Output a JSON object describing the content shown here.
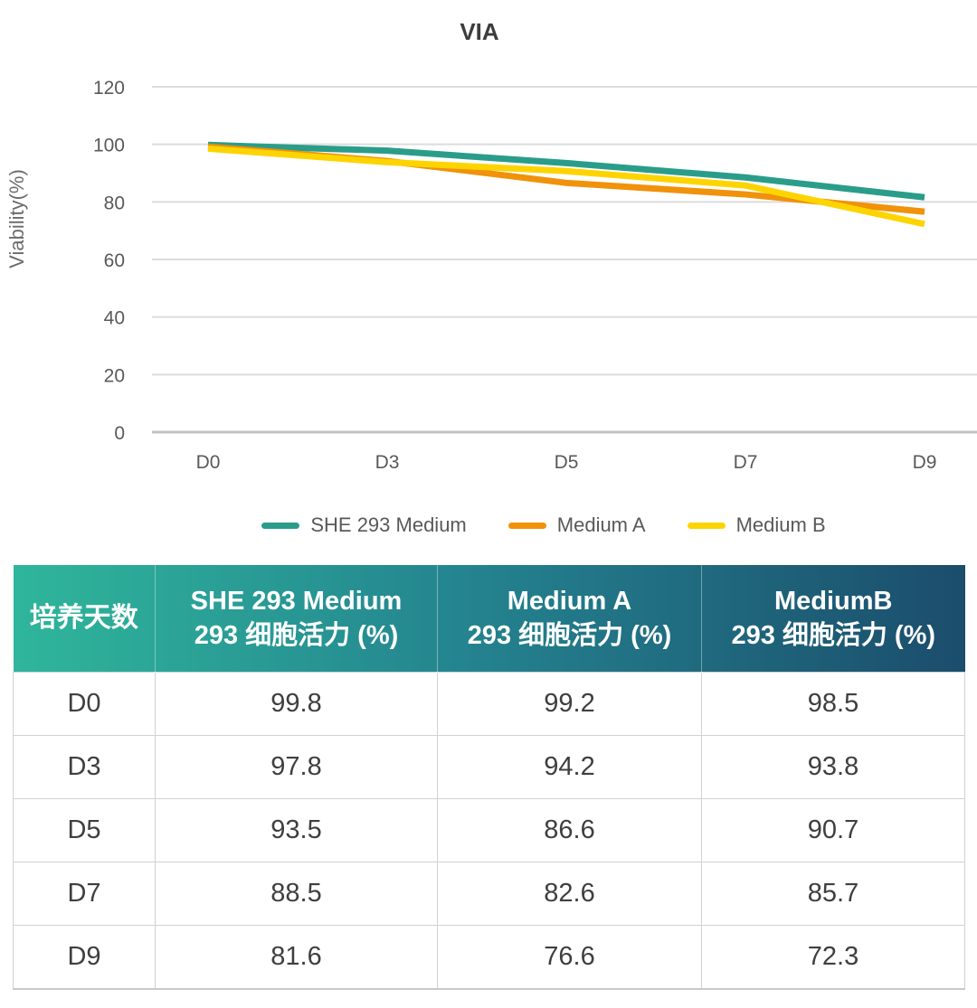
{
  "chart_data": {
    "type": "line",
    "title": "VIA",
    "xlabel": "",
    "ylabel": "Viability(%)",
    "categories": [
      "D0",
      "D3",
      "D5",
      "D7",
      "D9"
    ],
    "series": [
      {
        "name": "SHE 293 Medium",
        "color": "#2a9d8a",
        "values": [
          99.8,
          97.8,
          93.5,
          88.5,
          81.6
        ]
      },
      {
        "name": "Medium A",
        "color": "#f0920a",
        "values": [
          99.2,
          94.2,
          86.6,
          82.6,
          76.6
        ]
      },
      {
        "name": "Medium B",
        "color": "#fdd400",
        "values": [
          98.5,
          93.8,
          90.7,
          85.7,
          72.3
        ]
      }
    ],
    "ylim": [
      0,
      120
    ],
    "ytick_step": 20,
    "grid": true,
    "legend_position": "bottom"
  },
  "table": {
    "header": {
      "day_column": "培养天数",
      "data_columns": [
        {
          "line1": "SHE 293 Medium",
          "line2": "293 细胞活力 (%)"
        },
        {
          "line1": "Medium A",
          "line2": "293 细胞活力 (%)"
        },
        {
          "line1": "MediumB",
          "line2": "293 细胞活力 (%)"
        }
      ]
    },
    "rows": [
      {
        "day": "D0",
        "values": [
          "99.8",
          "99.2",
          "98.5"
        ]
      },
      {
        "day": "D3",
        "values": [
          "97.8",
          "94.2",
          "93.8"
        ]
      },
      {
        "day": "D5",
        "values": [
          "93.5",
          "86.6",
          "90.7"
        ]
      },
      {
        "day": "D7",
        "values": [
          "88.5",
          "82.6",
          "85.7"
        ]
      },
      {
        "day": "D9",
        "values": [
          "81.6",
          "76.6",
          "72.3"
        ]
      }
    ],
    "header_gradient": [
      "#2fb69b",
      "#1b4d6c"
    ]
  },
  "colors": {
    "grid": "#dcdcdc",
    "axis": "#c2c2c2",
    "tick_text": "#595959",
    "title_text": "#3d3d3d",
    "legend_text": "#595959",
    "body_text": "#3f3f3f"
  }
}
